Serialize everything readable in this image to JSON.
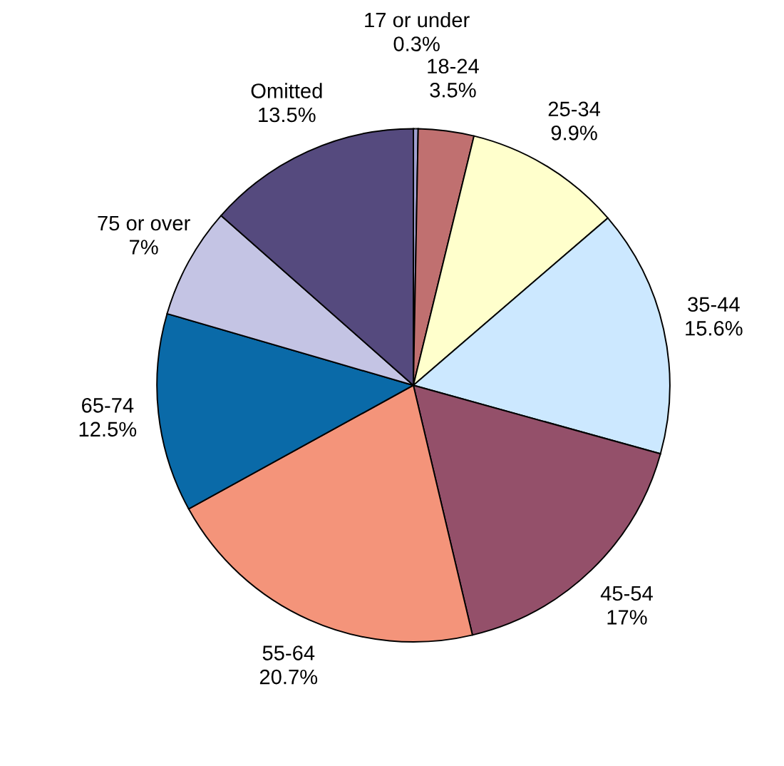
{
  "chart_data": {
    "type": "pie",
    "categories": [
      "17 or under",
      "18-24",
      "25-34",
      "35-44",
      "45-54",
      "55-64",
      "65-74",
      "75 or over",
      "Omitted"
    ],
    "values": [
      0.3,
      3.5,
      9.9,
      15.6,
      17,
      20.7,
      12.5,
      7,
      13.5
    ],
    "colors": [
      "#a0a0d0",
      "#c07070",
      "#ffffcc",
      "#cce8ff",
      "#94506a",
      "#f4947a",
      "#0a6aa8",
      "#c4c4e4",
      "#554a7e"
    ],
    "value_labels": [
      "0.3%",
      "3.5%",
      "9.9%",
      "15.6%",
      "17%",
      "20.7%",
      "12.5%",
      "7%",
      "13.5%"
    ],
    "legend": false
  }
}
